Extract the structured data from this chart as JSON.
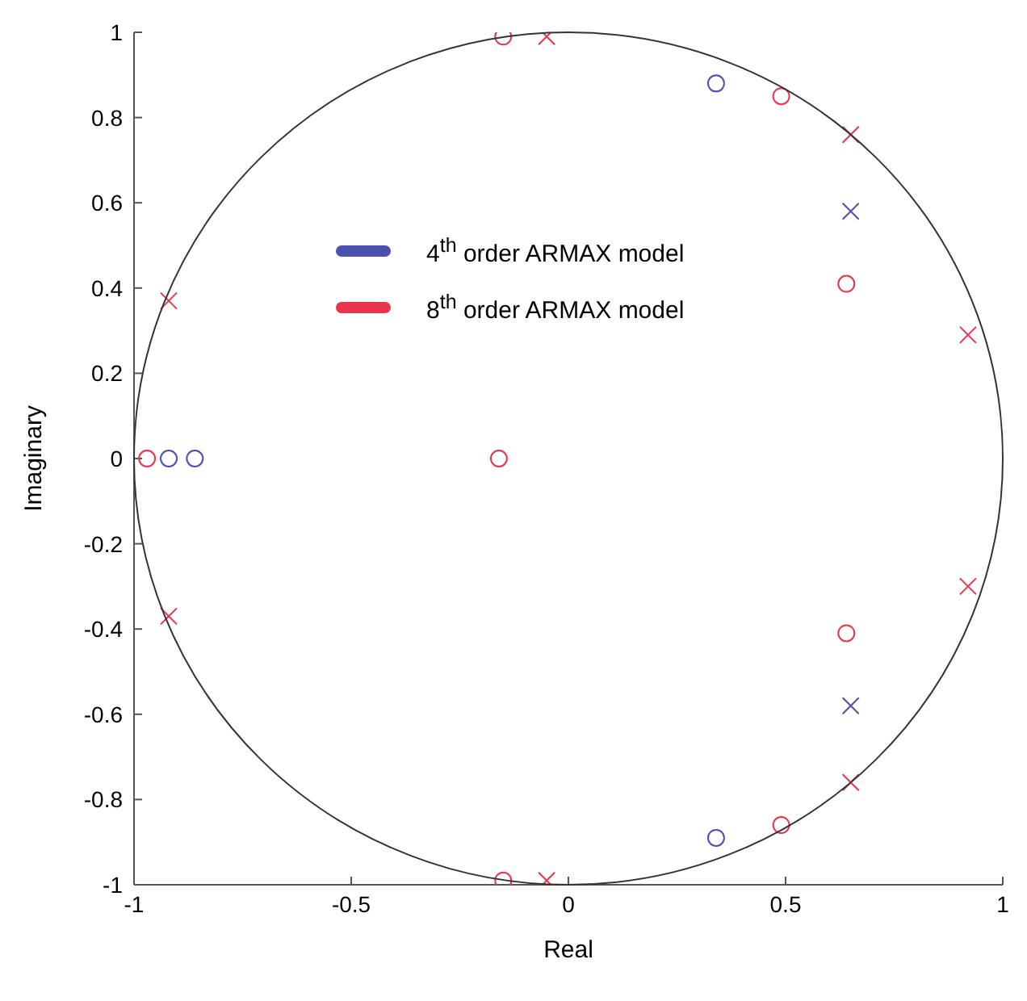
{
  "chart_data": {
    "type": "scatter",
    "xlabel": "Real",
    "ylabel": "Imaginary",
    "xlim": [
      -1,
      1
    ],
    "ylim": [
      -1,
      1
    ],
    "xticks": [
      -1,
      -0.5,
      0,
      0.5,
      1
    ],
    "yticks": [
      -1,
      -0.8,
      -0.6,
      -0.4,
      -0.2,
      0,
      0.2,
      0.4,
      0.6,
      0.8,
      1
    ],
    "grid": false,
    "legend": "top",
    "series": [
      {
        "name": "4$^{th}$ order ARMAX model",
        "color": "#4a4fb0",
        "marker": "circle",
        "x": [
          -0.92,
          -0.86,
          0.34,
          0.34
        ],
        "values": [
          0,
          0,
          0.88,
          -0.89
        ]
      },
      {
        "color": "#4a4fb0",
        "marker": "cross",
        "x": [
          0.65,
          0.65
        ],
        "values": [
          0.58,
          -0.58
        ]
      },
      {
        "name": "8$^{th}$ order ARMAX model",
        "color": "#e8334a",
        "marker": "circle",
        "x": [
          -0.97,
          -0.16,
          -0.15,
          -0.15,
          0.49,
          0.49,
          0.64,
          0.64
        ],
        "values": [
          0,
          0,
          0.99,
          -0.99,
          0.85,
          -0.86,
          0.41,
          -0.41
        ]
      },
      {
        "color": "#e8334a",
        "marker": "cross",
        "x": [
          -0.05,
          -0.05,
          0.65,
          0.65,
          0.92,
          0.92,
          -0.92,
          -0.92
        ],
        "values": [
          0.99,
          -0.99,
          0.76,
          -0.76,
          0.29,
          -0.3,
          0.37,
          -0.37
        ]
      }
    ]
  }
}
